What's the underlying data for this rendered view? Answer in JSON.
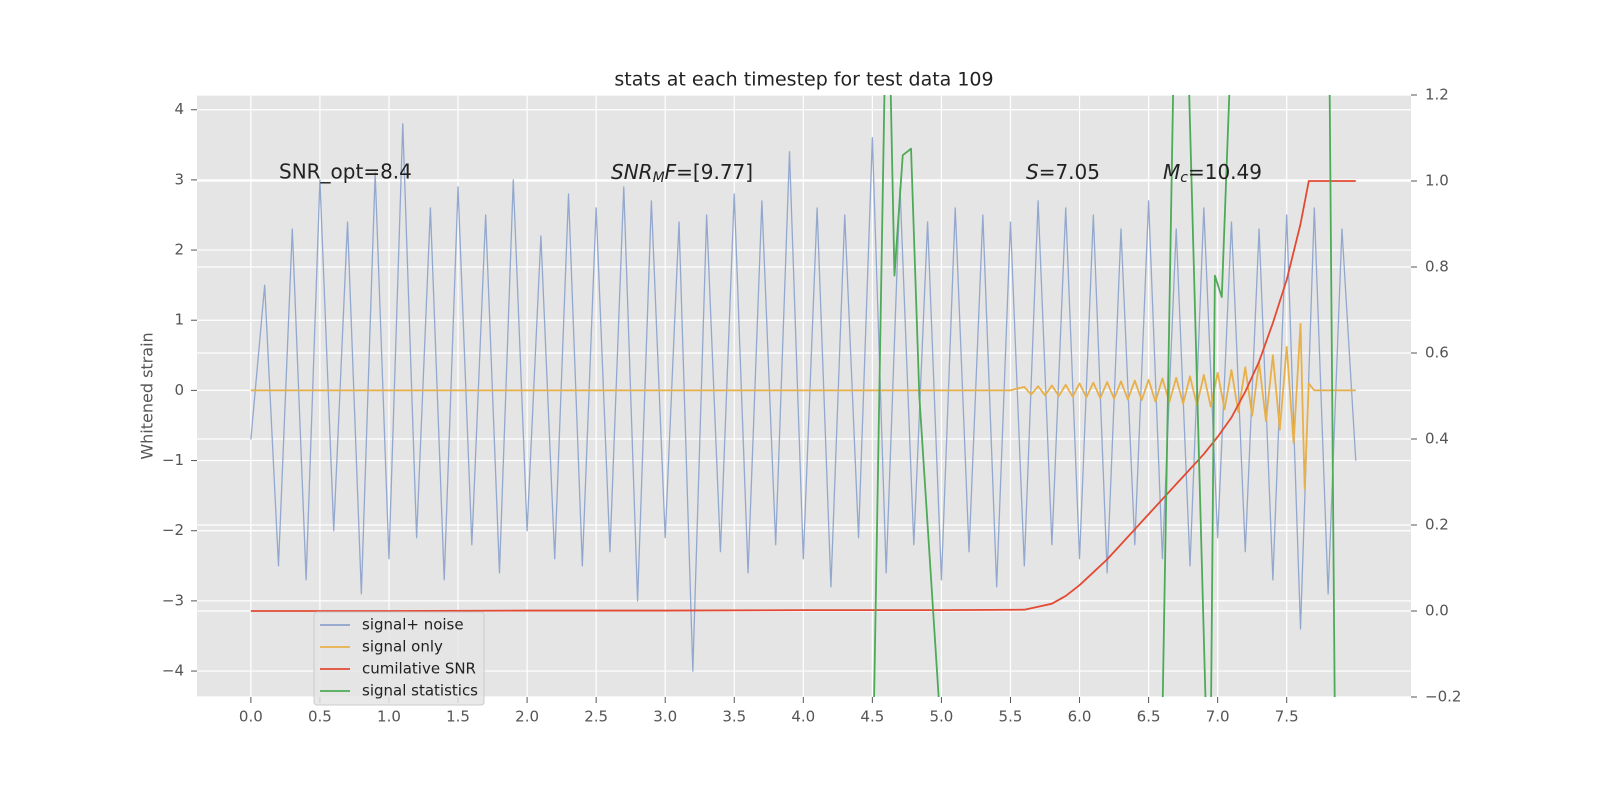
{
  "chart_data": {
    "type": "line",
    "title": "stats at each timestep for test data 109",
    "y_label": "Whitened strain",
    "xlim": [
      -0.39,
      8.4
    ],
    "ylim": [
      -4.37,
      4.21
    ],
    "y2lim": [
      -0.2,
      1.2
    ],
    "xticks": [
      {
        "value": 0,
        "label": "0.0"
      },
      0.5,
      {
        "value": 1,
        "label": "1.0"
      },
      1.5,
      {
        "value": 2,
        "label": "2.0"
      },
      2.5,
      {
        "value": 3,
        "label": "3.0"
      },
      3.5,
      {
        "value": 4,
        "label": "4.0"
      },
      4.5,
      {
        "value": 5,
        "label": "5.0"
      },
      5.5,
      {
        "value": 6,
        "label": "6.0"
      },
      6.5,
      {
        "value": 7,
        "label": "7.0"
      },
      7.5
    ],
    "yticks": [
      {
        "value": -4,
        "label": "−4"
      },
      {
        "value": -3,
        "label": "−3"
      },
      {
        "value": -2,
        "label": "−2"
      },
      {
        "value": -1,
        "label": "−1"
      },
      0,
      1,
      2,
      3,
      4
    ],
    "y2ticks": [
      {
        "value": -0.2,
        "label": "−0.2"
      },
      {
        "value": 0,
        "label": "0.0"
      },
      {
        "value": 0.2,
        "label": "0.2"
      },
      {
        "value": 0.4,
        "label": "0.4"
      },
      {
        "value": 0.6,
        "label": "0.6"
      },
      {
        "value": 0.8,
        "label": "0.8"
      },
      {
        "value": 1,
        "label": "1.0"
      },
      {
        "value": 1.2,
        "label": "1.2"
      }
    ],
    "grid": true,
    "legend": "lower left",
    "annotations": [
      {
        "text": "SNR_opt=8.4"
      },
      {
        "main": "SNR",
        "sub": "M",
        "tail": "F",
        "rest": "=[9.77]"
      },
      {
        "main": "S",
        "rest": "=7.05"
      },
      {
        "main": "M",
        "sub": "c",
        "rest": "=10.49"
      }
    ],
    "series": [
      {
        "name": "signal+ noise",
        "color": "#8ea4cc",
        "x": [
          0,
          0.1,
          0.2,
          0.3,
          0.4,
          0.5,
          0.6,
          0.7,
          0.8,
          0.9,
          1,
          1.1,
          1.2,
          1.3,
          1.4,
          1.5,
          1.6,
          1.7,
          1.8,
          1.9,
          2,
          2.1,
          2.2,
          2.3,
          2.4,
          2.5,
          2.6,
          2.7,
          2.8,
          2.9,
          3,
          3.1,
          3.2,
          3.3,
          3.4,
          3.5,
          3.6,
          3.7,
          3.8,
          3.9,
          4,
          4.1,
          4.2,
          4.3,
          4.4,
          4.5,
          4.6,
          4.7,
          4.8,
          4.9,
          5,
          5.1,
          5.2,
          5.3,
          5.4,
          5.5,
          5.6,
          5.7,
          5.8,
          5.9,
          6,
          6.1,
          6.2,
          6.3,
          6.4,
          6.5,
          6.6,
          6.7,
          6.8,
          6.9,
          7,
          7.1,
          7.2,
          7.3,
          7.4,
          7.5,
          7.6,
          7.7,
          7.8,
          7.9,
          8
        ],
        "values": [
          -0.7,
          1.5,
          -2.5,
          2.3,
          -2.7,
          3.0,
          -2.0,
          2.4,
          -2.9,
          3.1,
          -2.4,
          3.8,
          -2.1,
          2.6,
          -2.7,
          2.9,
          -2.2,
          2.5,
          -2.6,
          3.0,
          -2.0,
          2.2,
          -2.4,
          2.8,
          -2.5,
          2.6,
          -2.3,
          2.9,
          -3.0,
          2.7,
          -2.1,
          2.4,
          -4.0,
          2.5,
          -2.3,
          2.8,
          -2.6,
          2.7,
          -2.2,
          3.4,
          -2.4,
          2.6,
          -2.8,
          2.5,
          -2.1,
          3.6,
          -2.6,
          2.9,
          -2.2,
          2.4,
          -2.7,
          2.6,
          -2.3,
          2.5,
          -2.8,
          2.4,
          -2.5,
          2.7,
          -2.2,
          2.6,
          -2.4,
          2.5,
          -2.6,
          2.3,
          -2.2,
          2.7,
          -2.4,
          2.3,
          -2.5,
          2.6,
          -2.1,
          2.4,
          -2.3,
          2.3,
          -2.7,
          2.5,
          -3.4,
          2.6,
          -2.9,
          2.3,
          -1.0
        ]
      },
      {
        "name": "signal only",
        "color": "#e8b04a",
        "x": [
          0,
          1,
          2,
          3,
          4,
          5,
          5.5,
          5.6,
          5.65,
          5.7,
          5.75,
          5.8,
          5.85,
          5.9,
          5.95,
          6,
          6.05,
          6.1,
          6.15,
          6.2,
          6.25,
          6.3,
          6.35,
          6.4,
          6.45,
          6.5,
          6.55,
          6.6,
          6.65,
          6.7,
          6.75,
          6.8,
          6.85,
          6.9,
          6.95,
          7,
          7.05,
          7.1,
          7.15,
          7.2,
          7.25,
          7.3,
          7.35,
          7.4,
          7.45,
          7.5,
          7.55,
          7.6,
          7.63,
          7.66,
          7.7,
          8
        ],
        "values": [
          0,
          0,
          0,
          0,
          0,
          0,
          0,
          0.05,
          -0.06,
          0.06,
          -0.07,
          0.07,
          -0.08,
          0.08,
          -0.09,
          0.1,
          -0.1,
          0.11,
          -0.11,
          0.12,
          -0.12,
          0.13,
          -0.13,
          0.14,
          -0.14,
          0.15,
          -0.16,
          0.17,
          -0.17,
          0.18,
          -0.19,
          0.2,
          -0.21,
          0.22,
          -0.23,
          0.25,
          -0.27,
          0.29,
          -0.31,
          0.33,
          -0.36,
          0.4,
          -0.44,
          0.5,
          -0.56,
          0.62,
          -0.75,
          0.95,
          -1.4,
          0.1,
          0,
          0
        ]
      },
      {
        "name": "cumilative SNR",
        "color": "#e24a33",
        "axis": "y2",
        "x": [
          0,
          1,
          2,
          3,
          4,
          5,
          5.6,
          5.7,
          5.8,
          5.9,
          6,
          6.1,
          6.2,
          6.3,
          6.4,
          6.5,
          6.6,
          6.7,
          6.8,
          6.9,
          7,
          7.1,
          7.2,
          7.3,
          7.4,
          7.5,
          7.6,
          7.66,
          8
        ],
        "values": [
          0,
          0,
          0.001,
          0.001,
          0.002,
          0.002,
          0.003,
          0.01,
          0.017,
          0.035,
          0.06,
          0.09,
          0.12,
          0.155,
          0.19,
          0.225,
          0.26,
          0.295,
          0.33,
          0.365,
          0.405,
          0.45,
          0.51,
          0.58,
          0.67,
          0.77,
          0.9,
          1.0,
          1.0
        ]
      },
      {
        "name": "signal statistics",
        "color": "#4daa57",
        "axis": "y2",
        "x": [
          4.51,
          4.59,
          4.63,
          4.66,
          4.72,
          4.78,
          4.84,
          4.99,
          6.6,
          6.68,
          6.79,
          6.92,
          6.95,
          6.98,
          7.03,
          7.09,
          7.81,
          7.85
        ],
        "values": [
          -0.25,
          1.25,
          1.25,
          0.78,
          1.06,
          1.075,
          0.5,
          -0.25,
          -0.25,
          1.25,
          1.25,
          -0.3,
          -0.3,
          0.78,
          0.73,
          1.25,
          1.25,
          -0.3
        ]
      }
    ]
  }
}
